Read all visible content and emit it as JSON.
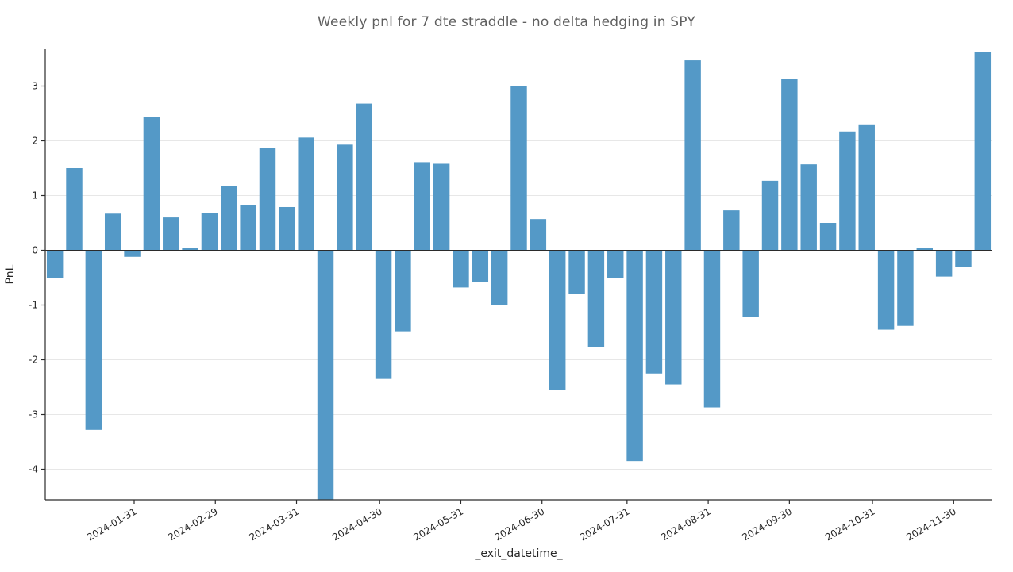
{
  "chart_data": {
    "type": "bar",
    "title": "Weekly pnl for 7 dte straddle - no delta hedging in SPY",
    "xlabel": "_exit_datetime_",
    "ylabel": "PnL",
    "bar_color": "#5499c7",
    "grid_color": "#e7e7e7",
    "axis_color": "#2b2b2b",
    "ylim": [
      -4.6,
      3.7
    ],
    "y_ticks": [
      3,
      2,
      1,
      0,
      -1,
      -2,
      -3,
      -4
    ],
    "x_tick_labels": [
      "2024-01-31",
      "2024-02-29",
      "2024-03-31",
      "2024-04-30",
      "2024-05-31",
      "2024-06-30",
      "2024-07-31",
      "2024-08-31",
      "2024-09-30",
      "2024-10-31",
      "2024-11-30"
    ],
    "x_tick_positions": [
      4.1,
      8.3,
      12.5,
      16.8,
      21.0,
      25.2,
      29.6,
      33.8,
      38.0,
      42.3,
      46.5
    ],
    "values": [
      -0.5,
      1.5,
      -3.28,
      0.67,
      -0.12,
      2.43,
      0.6,
      0.05,
      0.68,
      1.18,
      0.83,
      1.87,
      0.79,
      2.06,
      -4.55,
      1.93,
      2.68,
      -2.35,
      -1.48,
      1.61,
      1.58,
      -0.68,
      -0.58,
      -1.0,
      3.0,
      0.57,
      -2.55,
      -0.8,
      -1.77,
      -0.5,
      -3.85,
      -2.25,
      -2.45,
      3.47,
      -2.87,
      0.73,
      -1.22,
      1.27,
      3.13,
      1.57,
      0.5,
      2.17,
      2.3,
      -1.45,
      -1.38,
      0.05,
      -0.48,
      -0.3,
      3.62
    ],
    "legend": "none",
    "grid": "horizontal"
  }
}
